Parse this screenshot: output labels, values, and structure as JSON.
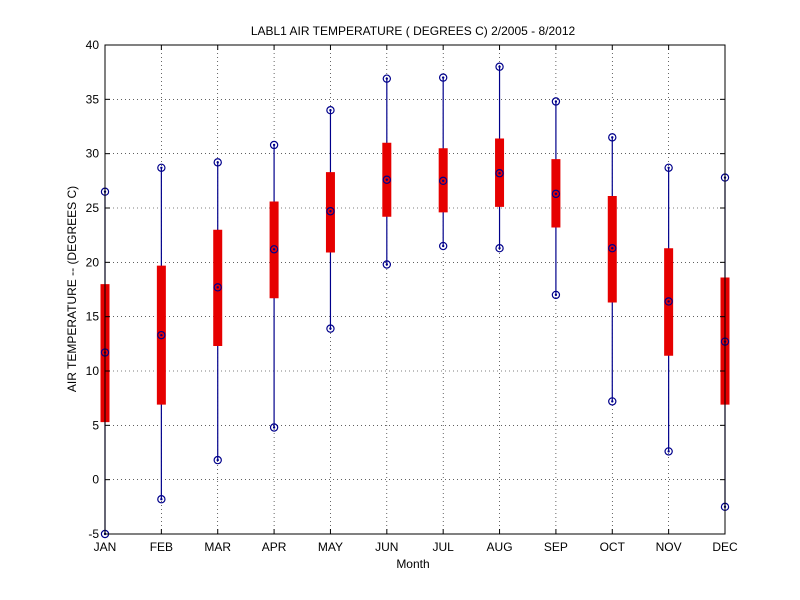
{
  "chart_data": {
    "type": "box",
    "title": "LABL1  AIR TEMPERATURE ( DEGREES C) 2/2005 - 8/2012",
    "xlabel": "Month",
    "ylabel": "AIR TEMPERATURE -- (DEGREES C)",
    "ylim": [
      -5,
      40
    ],
    "yticks": [
      -5,
      0,
      5,
      10,
      15,
      20,
      25,
      30,
      35,
      40
    ],
    "grid": true,
    "categories": [
      "JAN",
      "FEB",
      "MAR",
      "APR",
      "MAY",
      "JUN",
      "JUL",
      "AUG",
      "SEP",
      "OCT",
      "NOV",
      "DEC"
    ],
    "series": [
      {
        "min": -5.0,
        "q1": 5.3,
        "median": 11.7,
        "q3": 18.0,
        "max": 26.5
      },
      {
        "min": -1.8,
        "q1": 6.9,
        "median": 13.3,
        "q3": 19.7,
        "max": 28.7
      },
      {
        "min": 1.8,
        "q1": 12.3,
        "median": 17.7,
        "q3": 23.0,
        "max": 29.2
      },
      {
        "min": 4.8,
        "q1": 16.7,
        "median": 21.2,
        "q3": 25.6,
        "max": 30.8
      },
      {
        "min": 13.9,
        "q1": 20.9,
        "median": 24.7,
        "q3": 28.3,
        "max": 34.0
      },
      {
        "min": 19.8,
        "q1": 24.2,
        "median": 27.6,
        "q3": 31.0,
        "max": 36.9
      },
      {
        "min": 21.5,
        "q1": 24.6,
        "median": 27.5,
        "q3": 30.5,
        "max": 37.0
      },
      {
        "min": 21.3,
        "q1": 25.1,
        "median": 28.2,
        "q3": 31.4,
        "max": 38.0
      },
      {
        "min": 17.0,
        "q1": 23.2,
        "median": 26.3,
        "q3": 29.5,
        "max": 34.8
      },
      {
        "min": 7.2,
        "q1": 16.3,
        "median": 21.3,
        "q3": 26.1,
        "max": 31.5
      },
      {
        "min": 2.6,
        "q1": 11.4,
        "median": 16.4,
        "q3": 21.3,
        "max": 28.7
      },
      {
        "min": -2.5,
        "q1": 6.9,
        "median": 12.7,
        "q3": 18.6,
        "max": 27.8
      }
    ],
    "colors": {
      "whisker": "#00008B",
      "box": "#E60000",
      "marker": "#00008B",
      "grid": "#000000"
    }
  }
}
